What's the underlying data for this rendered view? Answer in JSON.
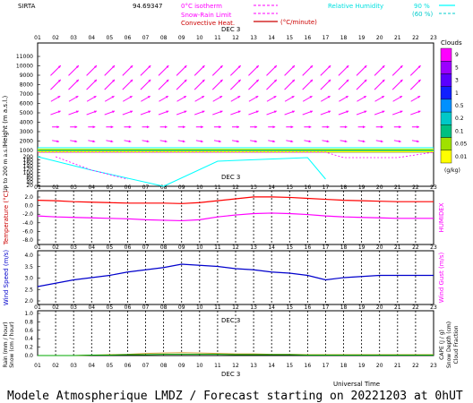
{
  "header": {
    "station": "SIRTA",
    "code": "94.69347",
    "legend_isotherm": "0°C isotherm",
    "legend_snow": "Snow-Rain Limit",
    "legend_conv": "Convective Heat.",
    "legend_unit": "(°C/minute)",
    "rh_label": "Relative Humidity",
    "rh_90": "90 %",
    "rh_60": "(60 %)",
    "rh_color_90": "#00ffff",
    "rh_color_60": "#00cccc"
  },
  "footer": {
    "title": "Modele Atmospherique LMDZ / Forecast starting on 20221203 at 0hUT",
    "utime": "Universal Time"
  },
  "date_label": "DEC 3",
  "hours": [
    "01",
    "02",
    "03",
    "04",
    "05",
    "06",
    "07",
    "08",
    "09",
    "10",
    "11",
    "12",
    "13",
    "14",
    "15",
    "16",
    "17",
    "18",
    "19",
    "20",
    "21",
    "22",
    "23"
  ],
  "chart_data": [
    {
      "type": "heatmap",
      "panel": "clouds_wind",
      "ylabel": "Height (m a.s.l.)",
      "ylabel2": "Up to 200 m a.s.l.",
      "yticks": [
        "11000",
        "10000",
        "9000",
        "8000",
        "7000",
        "6000",
        "5000",
        "4000",
        "3000",
        "2000",
        "1000"
      ],
      "ylim": [
        0,
        11000
      ],
      "yticks_low": [
        "200",
        "180",
        "160",
        "140",
        "120",
        "100",
        "80",
        "60",
        "40",
        "20"
      ],
      "colorbar_title": "Clouds",
      "colorbar_unit": "(g/kg)",
      "colorbar_ticks": [
        "9",
        "5",
        "3",
        "1",
        "0.5",
        "0.2",
        "0.1",
        "0.05",
        "0.01"
      ],
      "colorbar_colors": [
        "#ff00ff",
        "#9b00ff",
        "#5a00ff",
        "#1020ff",
        "#0090ff",
        "#00c8c8",
        "#00c080",
        "#a0e000",
        "#ffff00"
      ],
      "wind_arrows_color": "#ff00ff",
      "wind_rows": [
        {
          "height": 9500,
          "dirs": [
            225,
            225,
            225,
            225,
            225,
            225,
            225,
            225,
            225,
            225,
            225,
            225,
            225,
            225,
            225,
            225,
            225,
            225,
            225,
            225,
            225
          ]
        },
        {
          "height": 8000,
          "dirs": [
            225,
            225,
            225,
            225,
            225,
            225,
            225,
            225,
            225,
            225,
            225,
            225,
            225,
            225,
            225,
            225,
            225,
            225,
            225,
            225,
            225
          ]
        },
        {
          "height": 6500,
          "dirs": [
            240,
            240,
            240,
            240,
            240,
            240,
            240,
            240,
            240,
            240,
            240,
            240,
            240,
            240,
            240,
            240,
            240,
            240,
            240,
            240,
            240
          ]
        },
        {
          "height": 5000,
          "dirs": [
            250,
            250,
            250,
            250,
            250,
            250,
            250,
            250,
            250,
            250,
            250,
            250,
            250,
            250,
            250,
            250,
            250,
            250,
            250,
            250,
            250
          ]
        },
        {
          "height": 3500,
          "dirs": [
            270,
            270,
            270,
            270,
            270,
            270,
            270,
            270,
            270,
            270,
            270,
            270,
            270,
            270,
            270,
            270,
            270,
            270,
            270,
            270,
            270
          ]
        },
        {
          "height": 2000,
          "dirs": [
            280,
            280,
            280,
            280,
            280,
            280,
            280,
            280,
            280,
            280,
            280,
            280,
            280,
            280,
            280,
            280,
            280,
            280,
            280,
            280,
            280
          ]
        }
      ]
    },
    {
      "type": "line",
      "panel": "temperature",
      "ylabel": "Temperature (°C)",
      "ylabel2": "HUMIDEX",
      "yticks": [
        "2.0",
        "0.0",
        "-2.0",
        "-4.0",
        "-6.0",
        "-8.0"
      ],
      "ylim": [
        -8.8,
        2.5
      ],
      "x": [
        1,
        2,
        3,
        4,
        5,
        6,
        7,
        8,
        9,
        10,
        11,
        12,
        13,
        14,
        15,
        16,
        17,
        18,
        19,
        20,
        21,
        22,
        23
      ],
      "series": [
        {
          "color": "#ff0000",
          "values": [
            0.5,
            0.4,
            0.2,
            0.1,
            0.0,
            -0.1,
            -0.1,
            -0.1,
            -0.2,
            0.0,
            0.4,
            0.8,
            1.2,
            1.2,
            1.1,
            0.9,
            0.7,
            0.5,
            0.4,
            0.3,
            0.2,
            0.2,
            0.2
          ]
        },
        {
          "color": "#ff00ff",
          "values": [
            -2.8,
            -3.0,
            -3.1,
            -3.2,
            -3.3,
            -3.4,
            -3.6,
            -3.7,
            -3.8,
            -3.6,
            -3.0,
            -2.6,
            -2.3,
            -2.2,
            -2.3,
            -2.5,
            -2.8,
            -3.0,
            -3.1,
            -3.2,
            -3.3,
            -3.3,
            -3.3
          ]
        }
      ]
    },
    {
      "type": "line",
      "panel": "wind_speed",
      "ylabel": "Wind Speed (m/s)",
      "ylabel2": "Wind Gust (m/s)",
      "yticks": [
        "4.0",
        "3.5",
        "3.0",
        "2.5",
        "2.0"
      ],
      "ylim": [
        1.6,
        4.0
      ],
      "x": [
        1,
        2,
        3,
        4,
        5,
        6,
        7,
        8,
        9,
        10,
        11,
        12,
        13,
        14,
        15,
        16,
        17,
        18,
        19,
        20,
        21,
        22,
        23
      ],
      "series": [
        {
          "color": "#0000cc",
          "values": [
            2.4,
            2.55,
            2.7,
            2.8,
            2.9,
            3.05,
            3.15,
            3.25,
            3.4,
            3.35,
            3.3,
            3.2,
            3.15,
            3.05,
            3.0,
            2.9,
            2.7,
            2.8,
            2.85,
            2.9,
            2.9,
            2.9,
            2.9
          ]
        }
      ]
    },
    {
      "type": "bar",
      "panel": "precip",
      "ylabel": "Rain (mm / hour)",
      "ylabel1b": "Snow (cm / hour)",
      "ylabel2": "CAPE (J / g)",
      "ylabel2b": "Snow Depth (cm)",
      "ylabel2c": "Cloud Fraction",
      "yticks": [
        "1.0",
        "0.8",
        "0.6",
        "0.4",
        "0.2",
        "0.0"
      ],
      "ylim": [
        0,
        1.0
      ],
      "x": [
        1,
        2,
        3,
        4,
        5,
        6,
        7,
        8,
        9,
        10,
        11,
        12,
        13,
        14,
        15,
        16,
        17,
        18,
        19,
        20,
        21,
        22,
        23
      ],
      "series": [
        {
          "color": "#d4a040",
          "values": [
            0.0,
            0.0,
            0.0,
            0.01,
            0.02,
            0.03,
            0.05,
            0.06,
            0.07,
            0.06,
            0.05,
            0.04,
            0.04,
            0.03,
            0.03,
            0.02,
            0.02,
            0.02,
            0.02,
            0.02,
            0.02,
            0.02,
            0.02
          ]
        },
        {
          "color": "#00aa00",
          "values": [
            0.0,
            0.0,
            0.0,
            0.01,
            0.01,
            0.02,
            0.02,
            0.03,
            0.03,
            0.03,
            0.03,
            0.02,
            0.02,
            0.02,
            0.02,
            0.01,
            0.01,
            0.01,
            0.01,
            0.01,
            0.01,
            0.01,
            0.01
          ]
        }
      ]
    }
  ]
}
